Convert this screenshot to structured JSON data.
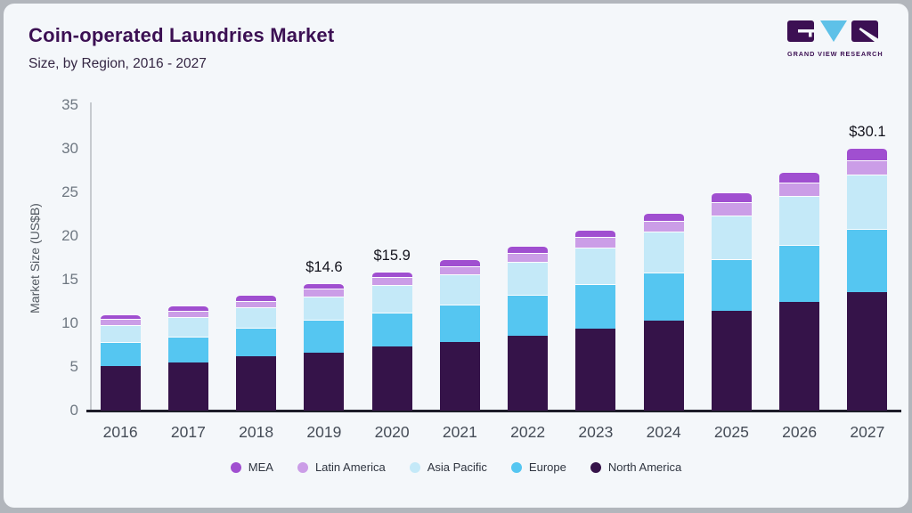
{
  "brand": {
    "logo_text": "GRAND VIEW RESEARCH",
    "logo_dark_color": "#3c1053",
    "logo_blue_color": "#5ec1e8"
  },
  "chart_data": {
    "type": "bar",
    "stacked": true,
    "title": "Coin-operated Laundries Market",
    "subtitle": "Size, by Region, 2016 - 2027",
    "ylabel": "Market Size (US$B)",
    "xlabel": "",
    "ylim": [
      0,
      35
    ],
    "yticks": [
      0,
      5,
      10,
      15,
      20,
      25,
      30,
      35
    ],
    "grid": false,
    "legend_position": "bottom",
    "categories": [
      "2016",
      "2017",
      "2018",
      "2019",
      "2020",
      "2021",
      "2022",
      "2023",
      "2024",
      "2025",
      "2026",
      "2027"
    ],
    "series": [
      {
        "name": "North America",
        "color": "#351349",
        "values": [
          5.1,
          5.5,
          6.2,
          6.6,
          7.3,
          7.9,
          8.6,
          9.4,
          10.3,
          11.4,
          12.4,
          13.6
        ]
      },
      {
        "name": "Europe",
        "color": "#55c6f1",
        "values": [
          2.8,
          3.0,
          3.3,
          3.8,
          3.9,
          4.2,
          4.7,
          5.1,
          5.5,
          5.9,
          6.6,
          7.2
        ]
      },
      {
        "name": "Asia Pacific",
        "color": "#c4e9f8",
        "values": [
          1.9,
          2.2,
          2.3,
          2.7,
          3.2,
          3.5,
          3.7,
          4.2,
          4.7,
          5.0,
          5.6,
          6.2
        ]
      },
      {
        "name": "Latin America",
        "color": "#cb9de7",
        "values": [
          0.7,
          0.7,
          0.8,
          0.9,
          0.9,
          0.9,
          1.1,
          1.2,
          1.2,
          1.6,
          1.5,
          1.7
        ]
      },
      {
        "name": "MEA",
        "color": "#a04fd0",
        "values": [
          0.5,
          0.6,
          0.7,
          0.6,
          0.6,
          0.9,
          0.8,
          0.8,
          1.0,
          1.1,
          1.3,
          1.4
        ]
      }
    ],
    "totals": [
      11.0,
      12.0,
      13.3,
      14.6,
      15.9,
      17.4,
      18.9,
      20.7,
      22.7,
      25.0,
      27.4,
      30.1
    ],
    "annotations": [
      {
        "category": "2019",
        "label": "$14.6"
      },
      {
        "category": "2020",
        "label": "$15.9"
      },
      {
        "category": "2027",
        "label": "$30.1"
      }
    ],
    "legend": [
      "MEA",
      "Latin America",
      "Asia Pacific",
      "Europe",
      "North America"
    ]
  }
}
